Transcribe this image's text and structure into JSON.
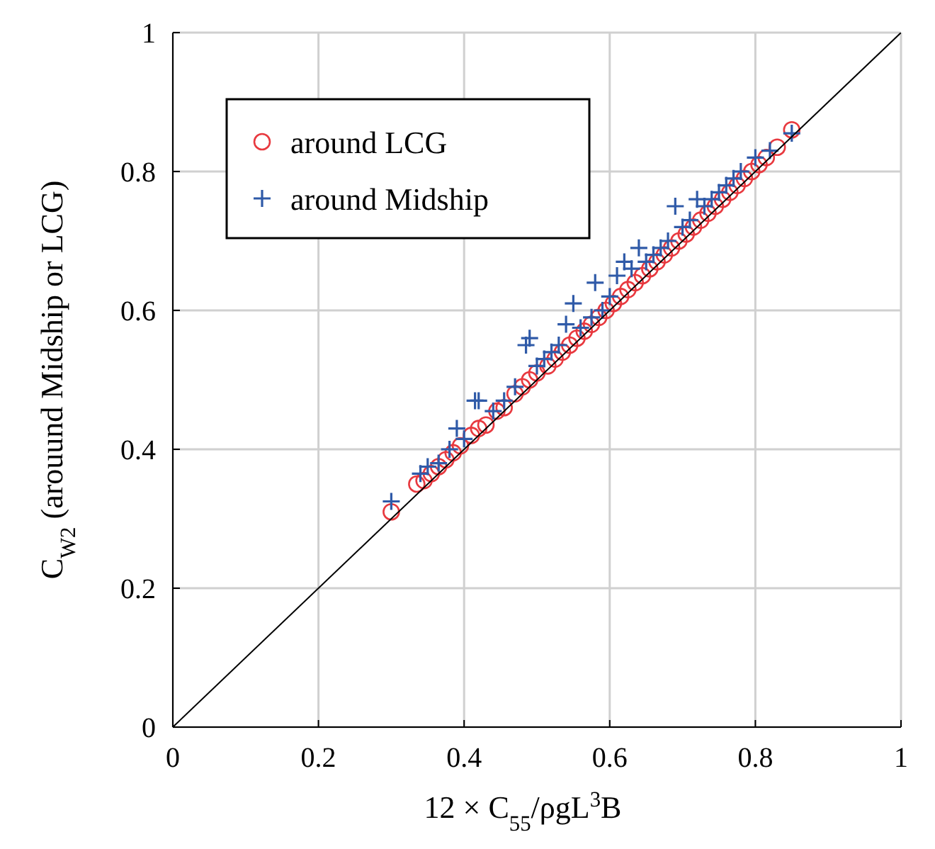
{
  "chart_data": {
    "type": "scatter",
    "xlabel": "12 × C$_{55}$/ρgL$^{3}$B",
    "ylabel": "C$_{W2}$ (arouund Midship or LCG)",
    "xlim": [
      0,
      1
    ],
    "ylim": [
      0,
      1
    ],
    "xticks": [
      0,
      0.2,
      0.4,
      0.6,
      0.8,
      1
    ],
    "yticks": [
      0,
      0.2,
      0.4,
      0.6,
      0.8,
      1
    ],
    "grid": true,
    "legend": "top left",
    "series": [
      {
        "name": "around LCG",
        "color": "#e8393f",
        "marker": "circle",
        "x": [
          0.3,
          0.335,
          0.345,
          0.355,
          0.365,
          0.375,
          0.385,
          0.395,
          0.41,
          0.42,
          0.43,
          0.445,
          0.455,
          0.47,
          0.48,
          0.49,
          0.5,
          0.515,
          0.525,
          0.535,
          0.545,
          0.555,
          0.565,
          0.575,
          0.585,
          0.595,
          0.605,
          0.615,
          0.625,
          0.635,
          0.645,
          0.655,
          0.665,
          0.675,
          0.685,
          0.695,
          0.705,
          0.715,
          0.725,
          0.735,
          0.745,
          0.755,
          0.765,
          0.775,
          0.785,
          0.795,
          0.805,
          0.815,
          0.83,
          0.85
        ],
        "values": [
          0.31,
          0.35,
          0.355,
          0.365,
          0.375,
          0.385,
          0.395,
          0.405,
          0.42,
          0.43,
          0.435,
          0.455,
          0.46,
          0.48,
          0.49,
          0.5,
          0.51,
          0.52,
          0.53,
          0.54,
          0.55,
          0.56,
          0.57,
          0.58,
          0.59,
          0.6,
          0.61,
          0.62,
          0.63,
          0.64,
          0.65,
          0.66,
          0.67,
          0.68,
          0.69,
          0.7,
          0.71,
          0.72,
          0.73,
          0.74,
          0.75,
          0.76,
          0.77,
          0.78,
          0.79,
          0.8,
          0.81,
          0.82,
          0.835,
          0.86
        ]
      },
      {
        "name": "around Midship",
        "color": "#2f5aa8",
        "marker": "cross",
        "x": [
          0.3,
          0.34,
          0.35,
          0.365,
          0.38,
          0.39,
          0.4,
          0.415,
          0.42,
          0.44,
          0.455,
          0.47,
          0.485,
          0.49,
          0.5,
          0.51,
          0.52,
          0.53,
          0.54,
          0.55,
          0.56,
          0.575,
          0.58,
          0.59,
          0.6,
          0.61,
          0.62,
          0.63,
          0.64,
          0.65,
          0.66,
          0.67,
          0.68,
          0.69,
          0.7,
          0.71,
          0.72,
          0.73,
          0.74,
          0.75,
          0.76,
          0.77,
          0.78,
          0.8,
          0.82,
          0.85
        ],
        "values": [
          0.325,
          0.365,
          0.375,
          0.38,
          0.4,
          0.43,
          0.415,
          0.47,
          0.47,
          0.455,
          0.47,
          0.49,
          0.55,
          0.56,
          0.52,
          0.53,
          0.54,
          0.55,
          0.58,
          0.61,
          0.575,
          0.59,
          0.64,
          0.6,
          0.62,
          0.65,
          0.67,
          0.66,
          0.69,
          0.67,
          0.68,
          0.69,
          0.7,
          0.75,
          0.72,
          0.73,
          0.76,
          0.75,
          0.76,
          0.77,
          0.78,
          0.79,
          0.8,
          0.82,
          0.83,
          0.855
        ]
      },
      {
        "type": "line",
        "color": "#000000",
        "marker": "none",
        "x": [
          0,
          1
        ],
        "values": [
          0,
          1
        ]
      }
    ]
  }
}
